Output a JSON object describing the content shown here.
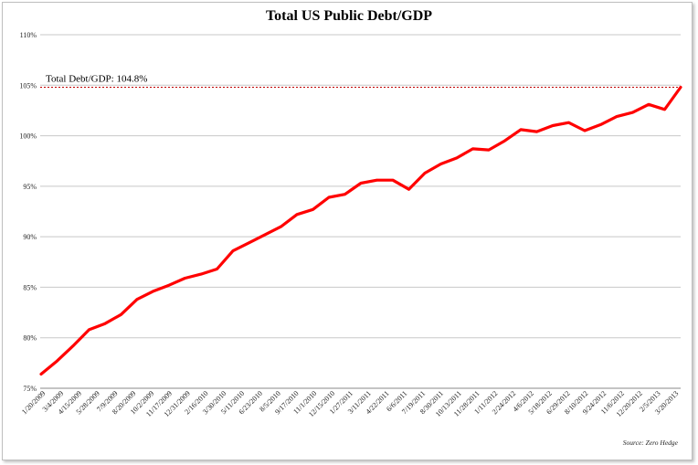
{
  "chart_data": {
    "type": "line",
    "title": "Total US Public Debt/GDP",
    "xlabel": "",
    "ylabel": "",
    "ylim": [
      75,
      110
    ],
    "yticks": [
      "75%",
      "80%",
      "85%",
      "90%",
      "95%",
      "100%",
      "105%",
      "110%"
    ],
    "x_tick_labels": [
      "1/20/2009",
      "3/4/2009",
      "4/15/2009",
      "5/28/2009",
      "7/9/2009",
      "8/20/2009",
      "10/2/2009",
      "11/17/2009",
      "12/31/2009",
      "2/16/2010",
      "3/30/2010",
      "5/11/2010",
      "6/23/2010",
      "8/5/2010",
      "9/17/2010",
      "11/1/2010",
      "12/15/2010",
      "1/27/2011",
      "3/11/2011",
      "4/22/2011",
      "6/6/2011",
      "7/19/2011",
      "8/30/2011",
      "10/13/2011",
      "11/28/2011",
      "1/11/2012",
      "2/24/2012",
      "4/6/2012",
      "5/18/2012",
      "6/29/2012",
      "8/10/2012",
      "9/24/2012",
      "11/6/2012",
      "12/20/2012",
      "2/5/2013",
      "3/20/2013"
    ],
    "series": [
      {
        "name": "",
        "color": "#ff0000",
        "values": [
          76.4,
          77.7,
          79.2,
          80.8,
          81.4,
          82.3,
          83.8,
          84.6,
          85.2,
          85.9,
          86.3,
          86.8,
          88.6,
          89.4,
          90.2,
          91.0,
          92.2,
          92.7,
          93.9,
          94.2,
          95.3,
          95.6,
          95.6,
          94.7,
          96.3,
          97.2,
          97.8,
          98.7,
          98.6,
          99.5,
          100.6,
          100.4,
          101.0,
          101.3,
          100.5,
          101.1,
          101.9,
          102.3,
          103.1,
          102.6,
          104.8
        ]
      }
    ],
    "reference_line": {
      "value": 104.8,
      "color": "#c00000",
      "label": "Total Debt/GDP: 104.8%"
    },
    "grid": true,
    "source": "Source: Zero Hedge"
  }
}
